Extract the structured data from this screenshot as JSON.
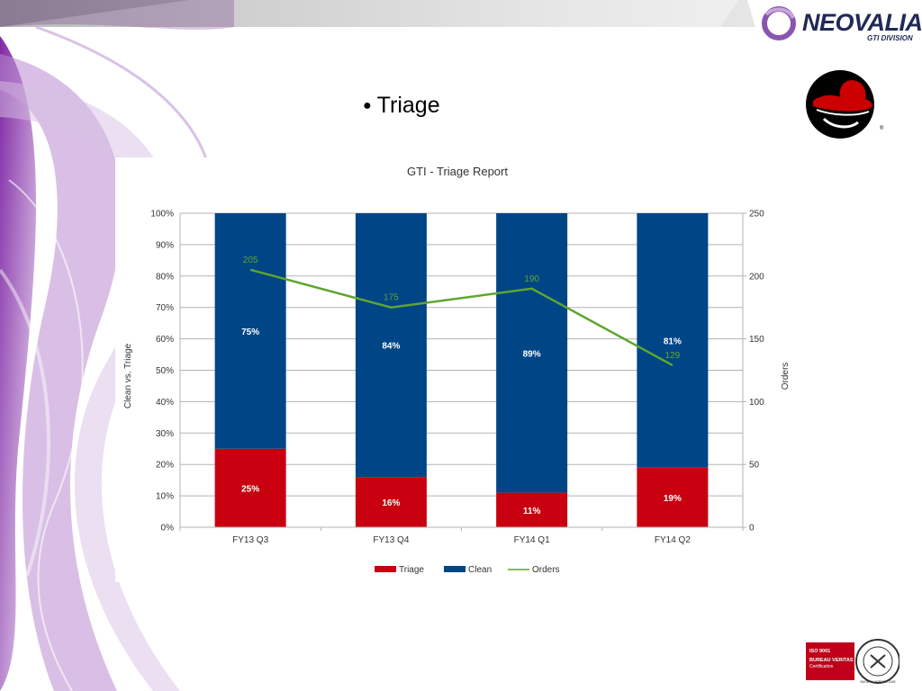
{
  "slide": {
    "bullet_text": "Triage",
    "logo": {
      "name": "NEOVALIA",
      "division": "GTI DIVISION"
    },
    "cert_badge": {
      "line1": "ISO 9001",
      "line2": "BUREAU VERITAS",
      "line3": "Certification",
      "seal_text": "BUREAU VERITAS 1828"
    }
  },
  "colors": {
    "triage": "#c8000f",
    "clean": "#004586",
    "orders": "#5ea62e",
    "grid": "#b3b3b3",
    "text": "#333333"
  },
  "chart_data": {
    "type": "bar",
    "stacked": true,
    "title": "GTI - Triage Report",
    "categories": [
      "FY13 Q3",
      "FY13 Q4",
      "FY14 Q1",
      "FY14 Q2"
    ],
    "series": [
      {
        "name": "Triage",
        "type": "bar",
        "values": [
          25,
          16,
          11,
          19
        ],
        "labels": [
          "25%",
          "16%",
          "11%",
          "19%"
        ]
      },
      {
        "name": "Clean",
        "type": "bar",
        "values": [
          75,
          84,
          89,
          81
        ],
        "labels": [
          "75%",
          "84%",
          "89%",
          "81%"
        ]
      },
      {
        "name": "Orders",
        "type": "line",
        "axis": "right",
        "values": [
          205,
          175,
          190,
          129
        ]
      }
    ],
    "ylabel": "Clean vs. Triage",
    "y2label": "Orders",
    "ylim": [
      0,
      100
    ],
    "y2lim": [
      0,
      250
    ],
    "yticks": [
      "0%",
      "10%",
      "20%",
      "30%",
      "40%",
      "50%",
      "60%",
      "70%",
      "80%",
      "90%",
      "100%"
    ],
    "y2ticks": [
      "0",
      "50",
      "100",
      "150",
      "200",
      "250"
    ],
    "grid": true,
    "legend": "bottom"
  }
}
